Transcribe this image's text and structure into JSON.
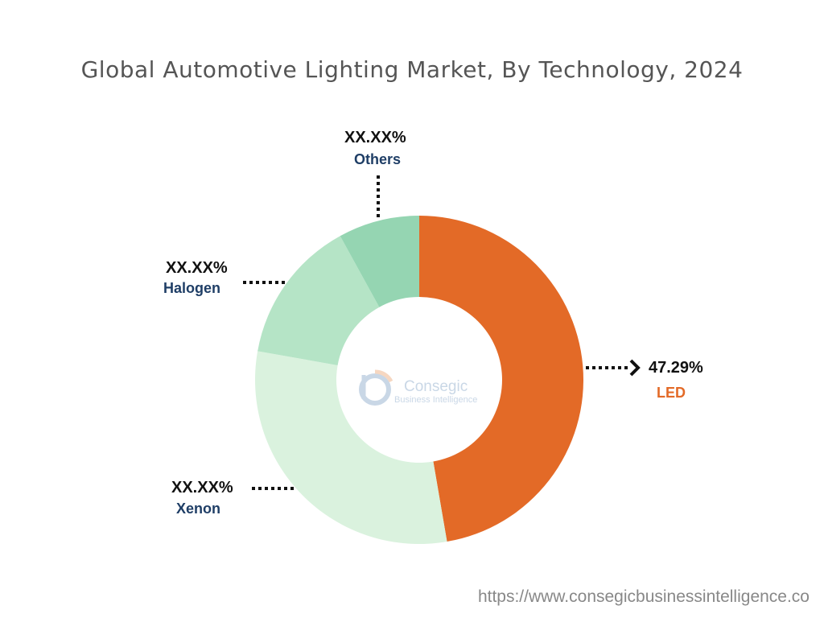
{
  "chart_data": {
    "type": "pie",
    "donut": true,
    "title": "Global Automotive Lighting Market, By Technology, 2024",
    "categories": [
      "LED",
      "Xenon",
      "Halogen",
      "Others"
    ],
    "values": [
      47.29,
      30.5,
      14.2,
      8.0
    ],
    "labels": [
      "47.29%",
      "XX.XX%",
      "XX.XX%",
      "XX.XX%"
    ],
    "colors": [
      "#E36A27",
      "#DAF2DE",
      "#B5E4C6",
      "#95D5B2"
    ],
    "label_colors": [
      "#E36A27",
      "#1F3E66",
      "#1F3E66",
      "#1F3E66"
    ],
    "start": "top",
    "direction": "clockwise"
  },
  "watermark": {
    "brand": "Consegic",
    "tagline": "Business Intelligence"
  },
  "footer": {
    "url": "https://www.consegicbusinessintelligence.co"
  }
}
